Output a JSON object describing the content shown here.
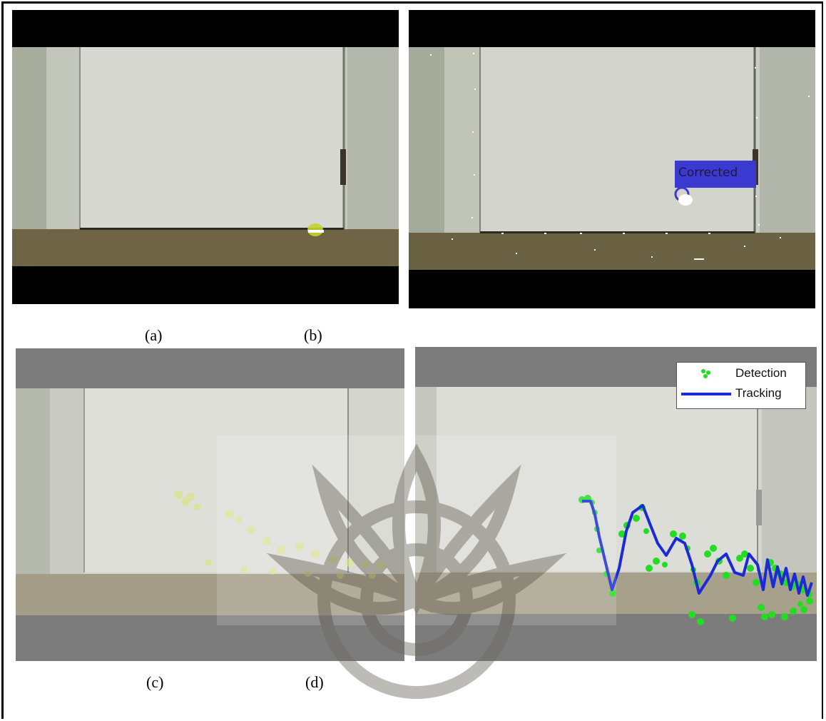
{
  "panels": [
    {
      "id": "a",
      "caption": "(a)"
    },
    {
      "id": "b",
      "caption": "(b)",
      "overlay_label": "Corrected"
    },
    {
      "id": "c",
      "caption": "(c)"
    },
    {
      "id": "d",
      "caption": "(d)"
    }
  ],
  "legend": {
    "detection_label": "Detection",
    "tracking_label": "Tracking",
    "detection_color": "#22dd22",
    "tracking_color": "#1a2bd6"
  },
  "colors": {
    "letterbox": "#000000",
    "letterbox_gray": "#7a7a7a",
    "door": "#d8dad5",
    "floor": "#6e6446",
    "label_box": "#3a3ad0"
  }
}
